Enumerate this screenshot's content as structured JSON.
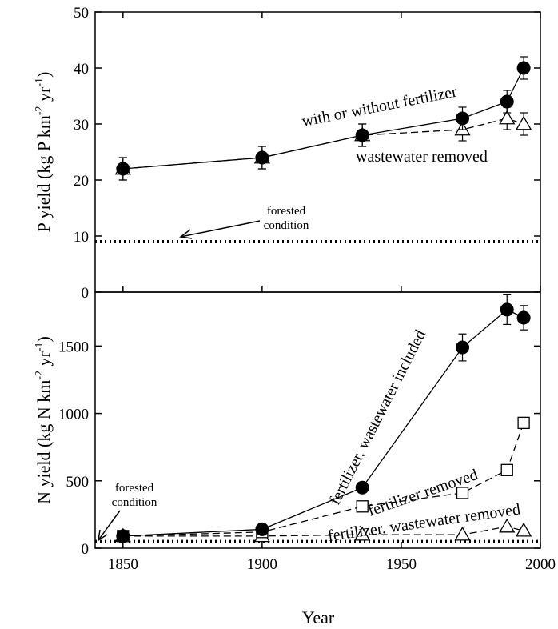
{
  "chart_data": [
    {
      "type": "line",
      "ylabel": "P yield (kg P km-2 yr-1)",
      "ylim": [
        0,
        50
      ],
      "y_ticks": [
        0,
        10,
        20,
        30,
        40,
        50
      ],
      "xlim": [
        1840,
        2000
      ],
      "reference_line": {
        "y": 9,
        "style": "dotted",
        "label": "forested condition"
      },
      "series": [
        {
          "name": "with or without fertilizer",
          "marker": "filled-circle",
          "line": "solid",
          "x": [
            1850,
            1900,
            1936,
            1972,
            1988,
            1994
          ],
          "y": [
            22,
            24,
            28,
            31,
            34,
            40
          ],
          "err": [
            2,
            2,
            2,
            2,
            2,
            2
          ]
        },
        {
          "name": "wastewater removed",
          "marker": "open-triangle",
          "line": "dashed",
          "x": [
            1850,
            1900,
            1936,
            1972,
            1988,
            1994
          ],
          "y": [
            22,
            24,
            28,
            29,
            31,
            30
          ],
          "err": [
            2,
            2,
            2,
            2,
            2,
            2
          ]
        }
      ]
    },
    {
      "type": "line",
      "xlabel": "Year",
      "ylabel": "N yield (kg N km-2 yr-1)",
      "ylim": [
        0,
        1900
      ],
      "y_ticks": [
        0,
        500,
        1000,
        1500
      ],
      "xlim": [
        1840,
        2000
      ],
      "x_ticks": [
        1850,
        1900,
        1950,
        2000
      ],
      "reference_line": {
        "y": 50,
        "style": "dotted",
        "label": "forested condition"
      },
      "series": [
        {
          "name": "fertilizer, wastewater included",
          "marker": "filled-circle",
          "line": "solid",
          "x": [
            1850,
            1900,
            1936,
            1972,
            1988,
            1994
          ],
          "y": [
            90,
            140,
            450,
            1490,
            1770,
            1710
          ],
          "err": [
            0,
            0,
            0,
            100,
            110,
            90
          ]
        },
        {
          "name": "fertilizer removed",
          "marker": "open-square",
          "line": "dashed",
          "x": [
            1850,
            1900,
            1936,
            1972,
            1988,
            1994
          ],
          "y": [
            90,
            120,
            310,
            410,
            580,
            930
          ],
          "err": [
            0,
            0,
            0,
            0,
            0,
            0
          ]
        },
        {
          "name": "fertilizer, wastewater removed",
          "marker": "open-triangle",
          "line": "dashed",
          "x": [
            1850,
            1900,
            1936,
            1972,
            1988,
            1994
          ],
          "y": [
            90,
            90,
            100,
            100,
            160,
            130
          ],
          "err": [
            0,
            0,
            0,
            0,
            0,
            0
          ]
        }
      ]
    }
  ],
  "labels": {
    "p_ylabel_main": "P yield (kg P km",
    "p_ylabel_exp1": "-2",
    "p_ylabel_mid": " yr",
    "p_ylabel_exp2": "-1",
    "p_ylabel_end": ")",
    "n_ylabel_main": "N yield (kg N km",
    "n_ylabel_exp1": "-2",
    "n_ylabel_mid": " yr",
    "n_ylabel_exp2": "-1",
    "n_ylabel_end": ")",
    "xlabel": "Year",
    "forested_line1": "forested",
    "forested_line2": "condition",
    "p_annot_with": "with or without fertilizer",
    "p_annot_ww": "wastewater removed",
    "n_annot_fwi": "fertilizer, wastewater included",
    "n_annot_fr": "fertilizer removed",
    "n_annot_fwr": "fertilizer, wastewater removed"
  }
}
